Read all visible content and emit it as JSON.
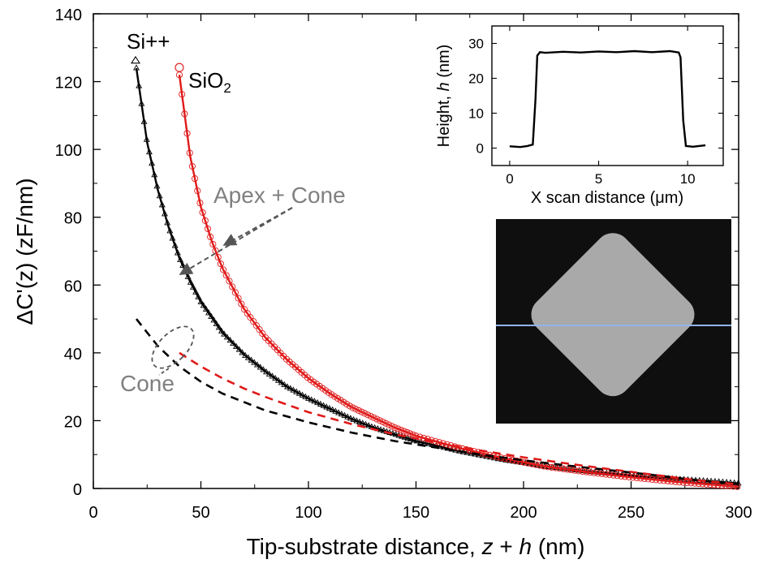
{
  "chart_data": [
    {
      "type": "scatter",
      "title": "",
      "xlabel": "Tip-substrate distance, z + h  (nm)",
      "ylabel": "ΔC'(z)  (zF/nm)",
      "xlim": [
        0,
        300
      ],
      "ylim": [
        0,
        140
      ],
      "x_ticks": [
        "0",
        "50",
        "100",
        "150",
        "200",
        "250",
        "300"
      ],
      "y_ticks": [
        "0",
        "20",
        "40",
        "60",
        "80",
        "100",
        "120",
        "140"
      ],
      "series": [
        {
          "name": "Si++",
          "label": "Si++",
          "marker": "triangle",
          "color": "#000000",
          "x": [
            20,
            25,
            30,
            35,
            40,
            45,
            50,
            60,
            70,
            80,
            90,
            100,
            110,
            120,
            130,
            140,
            150,
            170,
            190,
            210,
            230,
            250,
            270,
            290,
            300
          ],
          "y": [
            124,
            102,
            88,
            77,
            68,
            61,
            55,
            46,
            39.5,
            34.5,
            30,
            26.5,
            23.5,
            20.5,
            18,
            16,
            14,
            11,
            8.5,
            6.5,
            5,
            3.8,
            2.8,
            2,
            1.5
          ]
        },
        {
          "name": "SiO2",
          "label": "SiO",
          "label_sub": "2",
          "marker": "circle",
          "color": "#e01a1a",
          "x": [
            40,
            45,
            50,
            55,
            60,
            70,
            80,
            90,
            100,
            110,
            120,
            130,
            140,
            150,
            170,
            190,
            210,
            230,
            250,
            270,
            290,
            300
          ],
          "y": [
            122,
            98,
            83,
            73,
            65,
            53,
            44.5,
            38,
            32.5,
            28,
            24,
            21,
            18,
            15.5,
            12,
            9,
            6.5,
            4.8,
            3.3,
            2,
            1,
            0.5
          ]
        },
        {
          "name": "Si++ cone",
          "line_style": "dashed",
          "color": "#000000",
          "x": [
            20,
            30,
            40,
            50,
            60,
            80,
            100,
            120,
            140,
            160,
            180,
            200,
            220,
            240,
            260,
            280,
            300
          ],
          "y": [
            50,
            42,
            36,
            31.5,
            28,
            23,
            19.5,
            16.5,
            14,
            12,
            10,
            8.3,
            6.8,
            5.4,
            4,
            2.5,
            1.3
          ]
        },
        {
          "name": "SiO2 cone",
          "line_style": "dashed",
          "color": "#e01a1a",
          "x": [
            40,
            50,
            60,
            70,
            80,
            100,
            120,
            140,
            160,
            180,
            200,
            220,
            240,
            260,
            280,
            300
          ],
          "y": [
            40,
            36,
            32.5,
            29.5,
            27,
            22.5,
            19,
            16,
            13.5,
            11.2,
            9.2,
            7.4,
            5.7,
            4.1,
            2.5,
            1.2
          ]
        }
      ],
      "annotations": {
        "apex_cone": "Apex + Cone",
        "cone": "Cone",
        "si_label": "Si++",
        "sio_label": "SiO",
        "sio_sub": "2"
      },
      "colors": {
        "black": "#000000",
        "red": "#e01a1a",
        "gray": "#808080"
      }
    },
    {
      "type": "line",
      "title": "",
      "xlabel": "X scan distance (μm)",
      "ylabel": "Height, h (nm)",
      "xlim": [
        -1,
        12
      ],
      "ylim": [
        -5,
        35
      ],
      "x_ticks": [
        "0",
        "5",
        "10"
      ],
      "y_ticks": [
        "0",
        "10",
        "20",
        "30"
      ],
      "series": [
        {
          "name": "height profile",
          "x": [
            0,
            0.6,
            1.0,
            1.3,
            1.45,
            1.55,
            1.7,
            2.0,
            3.0,
            4.0,
            5.0,
            6.0,
            7.0,
            8.0,
            9.0,
            9.5,
            9.6,
            9.75,
            9.9,
            10.3,
            11.0
          ],
          "y": [
            0.5,
            0.3,
            0.6,
            1.0,
            14,
            26.5,
            27.5,
            27.3,
            27.6,
            27.4,
            27.7,
            27.5,
            27.8,
            27.5,
            27.8,
            27.4,
            26,
            8,
            0.6,
            0.4,
            0.8
          ]
        }
      ]
    }
  ]
}
